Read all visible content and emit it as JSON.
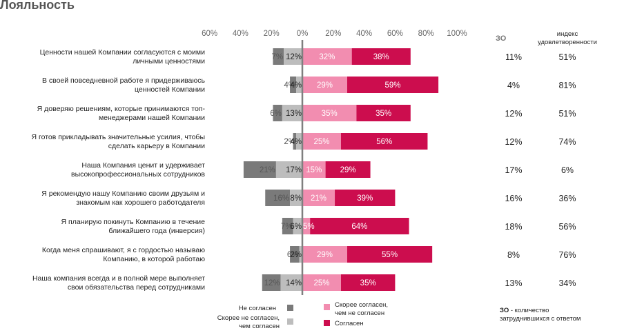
{
  "title": "Лояльность",
  "colors": {
    "disagree": "#7a7a7a",
    "rather_disagree": "#bdbdbd",
    "rather_agree": "#f28db0",
    "agree": "#cc0d4e",
    "text": "#222222",
    "axis": "#7f7f7f"
  },
  "columns": {
    "zo": "ЗО",
    "index": "индекс удовлетворенности"
  },
  "legend": {
    "disagree": "Не согласен",
    "rather_disagree": "Скорее не согласен, чем согласен",
    "rather_agree": "Скорее согласен, чем не согласен",
    "agree": "Согласен"
  },
  "note": "ЗО - количество затруднившихся с ответом",
  "chart_data": {
    "type": "bar",
    "orientation": "horizontal-diverging-stacked",
    "xlim": [
      -60,
      100
    ],
    "x_ticks": [
      "60%",
      "40%",
      "20%",
      "0%",
      "20%",
      "40%",
      "60%",
      "80%",
      "100%"
    ],
    "categories": [
      "Ценности нашей Компании согласуются с моими личными ценностями",
      "В своей повседневной работе я придерживаюсь ценностей Компании",
      "Я доверяю решениям, которые принимаются топ-менеджерами нашей Компании",
      "Я готов прикладывать значительные усилия, чтобы сделать карьеру в Компании",
      "Наша Компания ценит и удерживает высокопрофессиональных сотрудников",
      "Я рекомендую нашу Компанию своим друзьям и знакомым как хорошего работодателя",
      "Я планирую покинуть Компанию в течение ближайшего года (инверсия)",
      "Когда меня спрашивают, я с гордостью называю Компанию, в которой работаю",
      "Наша компания всегда и в полной мере выполняет свои обязательства перед сотрудниками"
    ],
    "category_lines": [
      [
        "Ценности нашей Компании согласуются с моими",
        "личными ценностями"
      ],
      [
        "В своей повседневной работе я придерживаюсь",
        "ценностей Компании"
      ],
      [
        "Я доверяю решениям, которые принимаются топ-",
        "менеджерами нашей Компании"
      ],
      [
        "Я готов прикладывать значительные усилия, чтобы",
        "сделать карьеру в Компании"
      ],
      [
        "Наша Компания ценит и удерживает",
        "высокопрофессиональных сотрудников"
      ],
      [
        "Я рекомендую нашу Компанию своим друзьям и",
        "знакомым как хорошего работодателя"
      ],
      [
        "Я планирую покинуть Компанию в течение",
        "ближайшего года (инверсия)"
      ],
      [
        "Когда меня спрашивают, я с гордостью называю",
        "Компанию, в которой работаю"
      ],
      [
        "Наша компания всегда и в полной мере выполняет",
        "свои обязательства перед сотрудниками"
      ]
    ],
    "series": [
      {
        "name": "Не согласен",
        "values": [
          7,
          4,
          6,
          2,
          21,
          16,
          7,
          6,
          12
        ]
      },
      {
        "name": "Скорее не согласен, чем согласен",
        "values": [
          12,
          4,
          13,
          4,
          17,
          8,
          6,
          2,
          14
        ]
      },
      {
        "name": "Скорее согласен, чем не согласен",
        "values": [
          32,
          29,
          35,
          25,
          15,
          21,
          5,
          29,
          25
        ]
      },
      {
        "name": "Согласен",
        "values": [
          38,
          59,
          35,
          56,
          29,
          39,
          64,
          55,
          35
        ]
      }
    ],
    "zo": [
      "11%",
      "4%",
      "12%",
      "12%",
      "17%",
      "16%",
      "18%",
      "8%",
      "13%"
    ],
    "index": [
      "51%",
      "81%",
      "51%",
      "74%",
      "6%",
      "36%",
      "56%",
      "76%",
      "34%"
    ]
  }
}
